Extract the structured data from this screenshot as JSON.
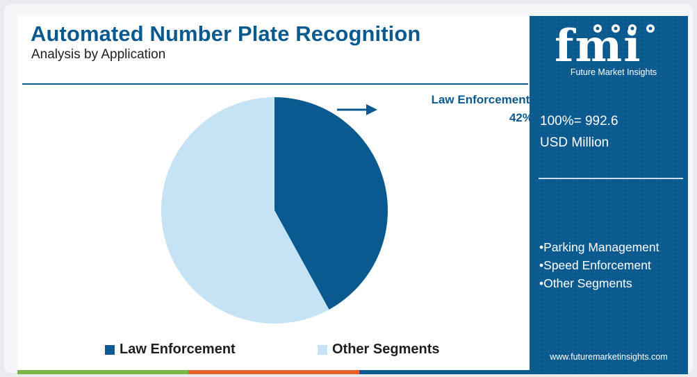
{
  "header": {
    "title": "Automated Number Plate Recognition",
    "subtitle": "Analysis by Application"
  },
  "chart_data": {
    "type": "pie",
    "slices": [
      {
        "label": "Law Enforcement",
        "value": 42,
        "color": "#0b5a8f"
      },
      {
        "label": "Other Segments",
        "value": 58,
        "color": "#c5e3f4"
      }
    ],
    "callout": {
      "line1": "Law Enforcement,",
      "line2": "42%"
    },
    "legend": [
      "Law Enforcement",
      "Other Segments"
    ],
    "legend_placement": "bottom"
  },
  "sidebar": {
    "brand": "fmi",
    "brand_caption": "Future Market Insights",
    "total_line1": "100%= 992.6",
    "total_line2": "USD Million",
    "other_segments": [
      "Parking Management",
      "Speed Enforcement",
      "Other Segments"
    ],
    "url": "www.futuremarketinsights.com"
  },
  "colors": {
    "primary": "#0b5a8f",
    "secondary": "#c5e3f4",
    "bottom_bar": [
      "#7ab648",
      "#e8622a",
      "#0b5a8f"
    ]
  }
}
